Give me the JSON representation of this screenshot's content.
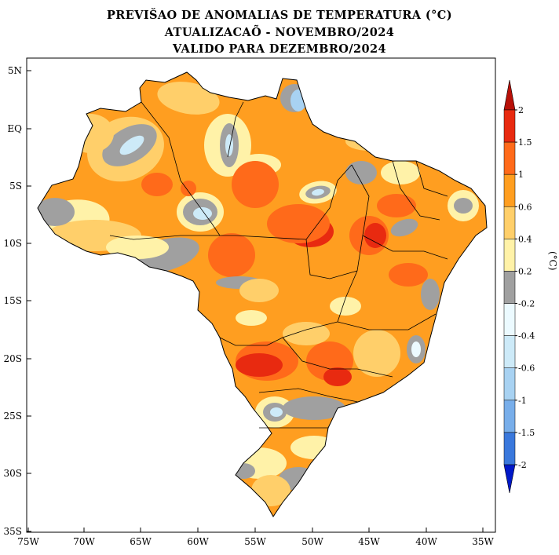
{
  "titles": {
    "line1": "PREVIŠAO DE ANOMALIAS DE TEMPERATURA (°C)",
    "line2": "ATUALIZACAÕ - NOVEMBRO/2024",
    "line3": "VALIDO PARA DEZEMBRO/2024"
  },
  "map": {
    "region": "Brasil",
    "lat_ticks": [
      "5N",
      "EQ",
      "5S",
      "10S",
      "15S",
      "20S",
      "25S",
      "30S",
      "35S"
    ],
    "lon_ticks": [
      "75W",
      "70W",
      "65W",
      "60W",
      "55W",
      "50W",
      "45W",
      "40W",
      "35W"
    ],
    "colors": {
      "background": "#ffffff",
      "ocean": "#ffffff",
      "dominant_anomaly": "#ff9e20",
      "border": "#000000"
    }
  },
  "legend": {
    "unit_label": "(°C)",
    "levels": [
      "-2",
      "-1.5",
      "-1",
      "-0.6",
      "-0.4",
      "-0.2",
      "0.2",
      "0.4",
      "0.6",
      "1",
      "1.5",
      "2"
    ],
    "bins": [
      {
        "range": "< -2",
        "color": "#0018c8"
      },
      {
        "range": "-2 a -1.5",
        "color": "#1d4ed8"
      },
      {
        "range": "-1.5 a -1",
        "color": "#3a78dc"
      },
      {
        "range": "-1 a -0.6",
        "color": "#78aeea"
      },
      {
        "range": "-0.6 a -0.4",
        "color": "#a8d2f2"
      },
      {
        "range": "-0.4 a -0.2",
        "color": "#cdeaf8"
      },
      {
        "range": "-0.2 a 0.2",
        "color": "#ecfaff"
      },
      {
        "range": "0.2 a 0.4",
        "color": "#a0a0a0"
      },
      {
        "range": "0.4 a 0.6",
        "color": "#fff2a8"
      },
      {
        "range": "0.6 a 1",
        "color": "#ffcf6a"
      },
      {
        "range": "1 a 1.5",
        "color": "#ff9e20"
      },
      {
        "range": "1.5 a 2",
        "color": "#ff6a1a"
      },
      {
        "range": "> 2",
        "color": "#e82a10"
      },
      {
        "range": "> 2 (seta)",
        "color": "#b81008"
      }
    ]
  }
}
